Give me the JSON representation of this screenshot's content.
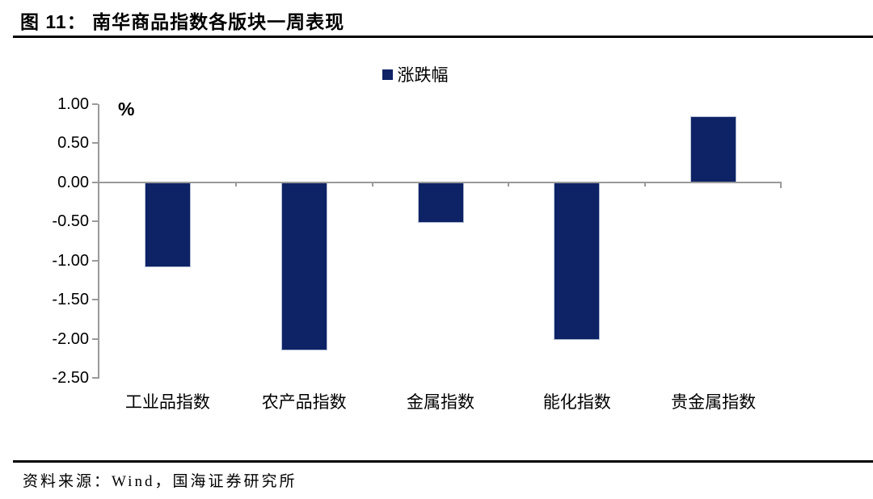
{
  "header": {
    "title": "图 11： 南华商品指数各版块一周表现"
  },
  "footer": {
    "source": "资料来源：Wind，国海证券研究所"
  },
  "chart_data": {
    "type": "bar",
    "title": "南华商品指数各版块一周表现",
    "categories": [
      "工业品指数",
      "农产品指数",
      "金属指数",
      "能化指数",
      "贵金属指数"
    ],
    "series": [
      {
        "name": "涨跌幅",
        "values": [
          -1.09,
          -2.15,
          -0.52,
          -2.02,
          0.84
        ]
      }
    ],
    "xlabel": "",
    "ylabel": "%",
    "ylim": [
      -2.5,
      1.0
    ],
    "ytick_step": 0.5,
    "ytick_labels": [
      "1.00",
      "0.50",
      "0.00",
      "-0.50",
      "-1.00",
      "-1.50",
      "-2.00",
      "-2.50"
    ],
    "legend_position": "top-center",
    "grid": false,
    "bar_color": "#0e2365",
    "axis_color": "#9a9a9a",
    "text_color": "#000000"
  }
}
